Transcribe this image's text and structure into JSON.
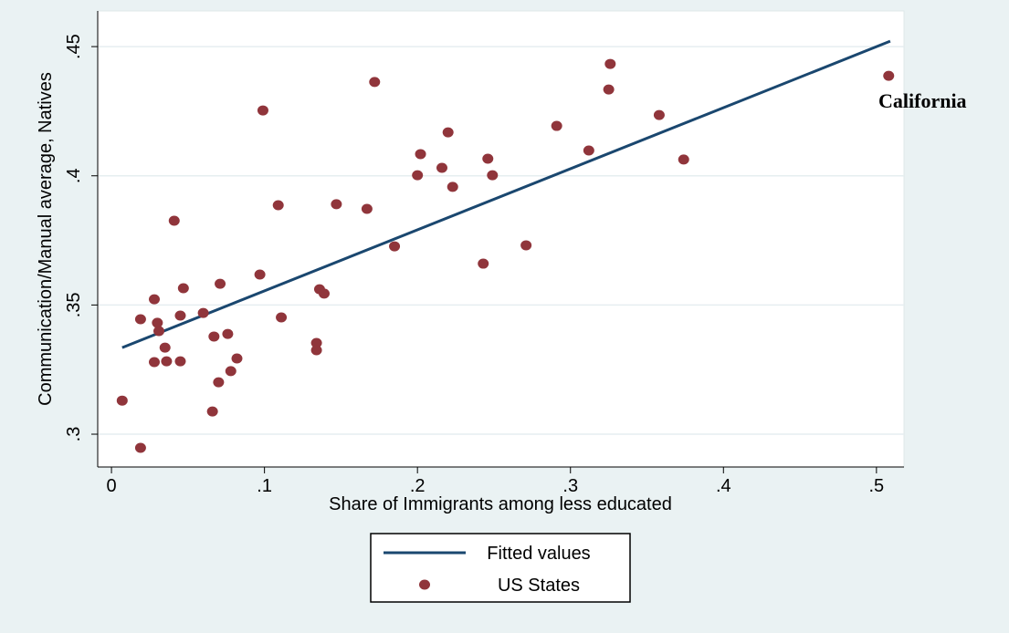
{
  "chart_data": {
    "type": "scatter",
    "x_label": "Share of Immigrants among less educated",
    "y_label": "Communication/Manual average, Natives",
    "xlim": [
      -0.009,
      0.518
    ],
    "ylim": [
      0.2873,
      0.4638
    ],
    "xticks": [
      {
        "value": 0,
        "label": "0"
      },
      {
        "value": 0.1,
        "label": ".1"
      },
      {
        "value": 0.2,
        "label": ".2"
      },
      {
        "value": 0.3,
        "label": ".3"
      },
      {
        "value": 0.4,
        "label": ".4"
      },
      {
        "value": 0.5,
        "label": ".5"
      }
    ],
    "yticks": [
      {
        "value": 0.3,
        "label": ".3"
      },
      {
        "value": 0.35,
        "label": ".35"
      },
      {
        "value": 0.4,
        "label": ".4"
      },
      {
        "value": 0.45,
        "label": ".45"
      }
    ],
    "grid": true,
    "legend": "bottom",
    "annotations": [
      {
        "text": "California"
      }
    ],
    "series": [
      {
        "name": "Fitted values",
        "type": "line",
        "color": "#1a476f",
        "x": [
          0.007,
          0.509
        ],
        "values": [
          0.3335,
          0.4521
        ]
      },
      {
        "name": "US States",
        "type": "scatter",
        "color": "#90353b",
        "x": [
          0.007,
          0.019,
          0.019,
          0.028,
          0.028,
          0.03,
          0.031,
          0.035,
          0.036,
          0.041,
          0.045,
          0.045,
          0.047,
          0.06,
          0.066,
          0.067,
          0.07,
          0.071,
          0.076,
          0.078,
          0.082,
          0.097,
          0.099,
          0.109,
          0.111,
          0.134,
          0.134,
          0.136,
          0.139,
          0.147,
          0.167,
          0.172,
          0.185,
          0.2,
          0.202,
          0.216,
          0.22,
          0.223,
          0.243,
          0.246,
          0.249,
          0.271,
          0.291,
          0.312,
          0.325,
          0.326,
          0.358,
          0.374,
          0.508
        ],
        "values": [
          0.313,
          0.2947,
          0.3445,
          0.3522,
          0.3279,
          0.3431,
          0.3399,
          0.3335,
          0.3282,
          0.3826,
          0.3459,
          0.3282,
          0.3565,
          0.3469,
          0.3088,
          0.3378,
          0.3201,
          0.3582,
          0.3388,
          0.3244,
          0.3293,
          0.3618,
          0.4253,
          0.3886,
          0.3452,
          0.3353,
          0.3325,
          0.3561,
          0.3544,
          0.389,
          0.3872,
          0.4363,
          0.3727,
          0.4002,
          0.4084,
          0.4031,
          0.4168,
          0.3957,
          0.366,
          0.4066,
          0.4002,
          0.3731,
          0.4193,
          0.4098,
          0.4334,
          0.4433,
          0.4235,
          0.4063,
          0.4387
        ]
      }
    ]
  }
}
